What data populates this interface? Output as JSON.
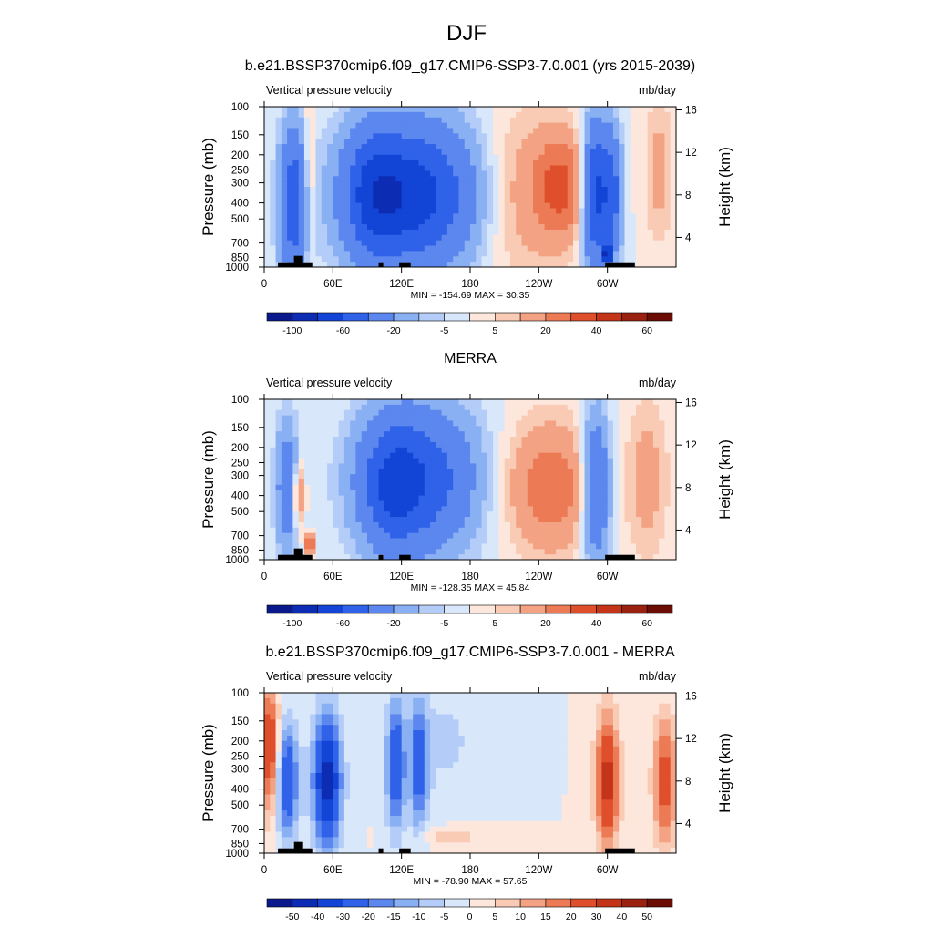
{
  "figure": {
    "title": "DJF"
  },
  "colors": {
    "cb1": [
      "#0a1a8c",
      "#0c2cb4",
      "#1244d6",
      "#2f62e8",
      "#5b87ee",
      "#8ab0f4",
      "#b4cdf8",
      "#d9e7fb",
      "#fde7dc",
      "#f9cab4",
      "#f3a383",
      "#ec7a55",
      "#e04f2c",
      "#c43418",
      "#9a210f",
      "#6b0d05"
    ],
    "cb3": [
      "#0a1a8c",
      "#0c2cb4",
      "#1244d6",
      "#2f62e8",
      "#5b87ee",
      "#8ab0f4",
      "#b4cdf8",
      "#d9e7fb",
      "#fde7dc",
      "#f9cab4",
      "#f3a383",
      "#ec7a55",
      "#e04f2c",
      "#c43418",
      "#9a210f",
      "#6b0d05"
    ]
  },
  "chart_data": [
    {
      "type": "heatmap",
      "title": "b.e21.BSSP370cmip6.f09_g17.CMIP6-SSP3-7.0.001 (yrs 2015-2039)",
      "left_label": "Vertical pressure velocity",
      "right_label": "mb/day",
      "ylabel": "Pressure (mb)",
      "y2label": "Height (km)",
      "x_ticks": [
        "0",
        "60E",
        "120E",
        "180",
        "120W",
        "60W"
      ],
      "y_ticks": [
        "100",
        "150",
        "200",
        "250",
        "300",
        "400",
        "500",
        "700",
        "850",
        "1000"
      ],
      "y2_ticks": [
        "16",
        "12",
        "8",
        "4"
      ],
      "stats": "MIN = -154.69  MAX =  30.35",
      "colorbar_labels": [
        "-100",
        "-60",
        "-20",
        "-5",
        "5",
        "20",
        "40",
        "60"
      ]
    },
    {
      "type": "heatmap",
      "title": "MERRA",
      "left_label": "Vertical pressure velocity",
      "right_label": "mb/day",
      "ylabel": "Pressure (mb)",
      "y2label": "Height (km)",
      "x_ticks": [
        "0",
        "60E",
        "120E",
        "180",
        "120W",
        "60W"
      ],
      "y_ticks": [
        "100",
        "150",
        "200",
        "250",
        "300",
        "400",
        "500",
        "700",
        "850",
        "1000"
      ],
      "y2_ticks": [
        "16",
        "12",
        "8",
        "4"
      ],
      "stats": "MIN = -128.35  MAX =  45.84",
      "colorbar_labels": [
        "-100",
        "-60",
        "-20",
        "-5",
        "5",
        "20",
        "40",
        "60"
      ]
    },
    {
      "type": "heatmap",
      "title": "b.e21.BSSP370cmip6.f09_g17.CMIP6-SSP3-7.0.001 - MERRA",
      "left_label": "Vertical pressure velocity",
      "right_label": "mb/day",
      "ylabel": "Pressure (mb)",
      "y2label": "Height (km)",
      "x_ticks": [
        "0",
        "60E",
        "120E",
        "180",
        "120W",
        "60W"
      ],
      "y_ticks": [
        "100",
        "150",
        "200",
        "250",
        "300",
        "400",
        "500",
        "700",
        "850",
        "1000"
      ],
      "y2_ticks": [
        "16",
        "12",
        "8",
        "4"
      ],
      "stats": "MIN = -78.90  MAX =  57.65",
      "colorbar_labels": [
        "-50",
        "-40",
        "-30",
        "-20",
        "-15",
        "-10",
        "-5",
        "0",
        "5",
        "10",
        "15",
        "20",
        "30",
        "40",
        "50"
      ]
    }
  ]
}
